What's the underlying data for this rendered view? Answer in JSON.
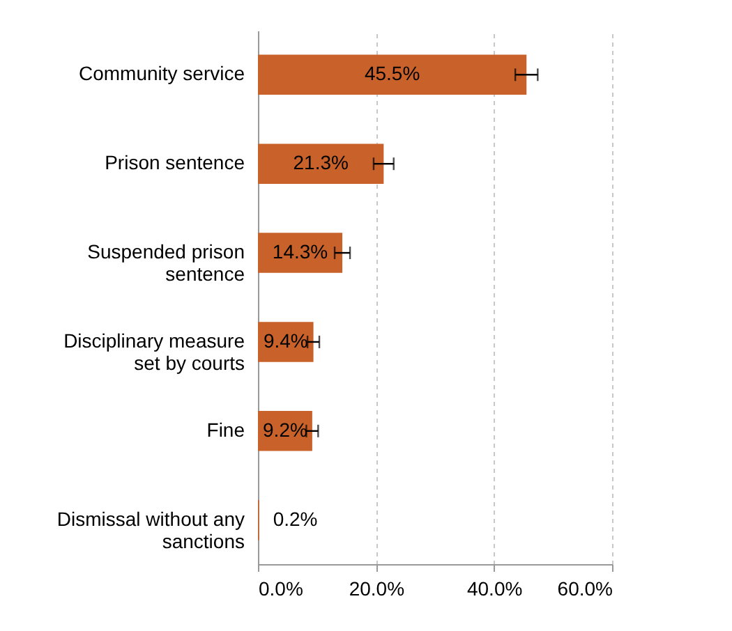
{
  "chart_data": {
    "type": "bar",
    "orientation": "horizontal",
    "categories": [
      "Community service",
      "Prison sentence",
      "Suspended prison sentence",
      "Disciplinary measure set by courts",
      "Fine",
      "Dismissal without any sanctions"
    ],
    "values": [
      45.5,
      21.3,
      14.3,
      9.4,
      9.2,
      0.2
    ],
    "errors": [
      1.9,
      1.7,
      1.3,
      1.0,
      1.0,
      null
    ],
    "value_labels": [
      "45.5%",
      "21.3%",
      "14.3%",
      "9.4%",
      "9.2%",
      "0.2%"
    ],
    "color": "#c8622a",
    "xlim": [
      0,
      60
    ],
    "xticks": [
      {
        "value": 0,
        "label": "0.0%"
      },
      {
        "value": 20,
        "label": "20.0%"
      },
      {
        "value": 40,
        "label": "40.0%"
      },
      {
        "value": 60,
        "label": "60.0%"
      }
    ],
    "grid": "x"
  }
}
